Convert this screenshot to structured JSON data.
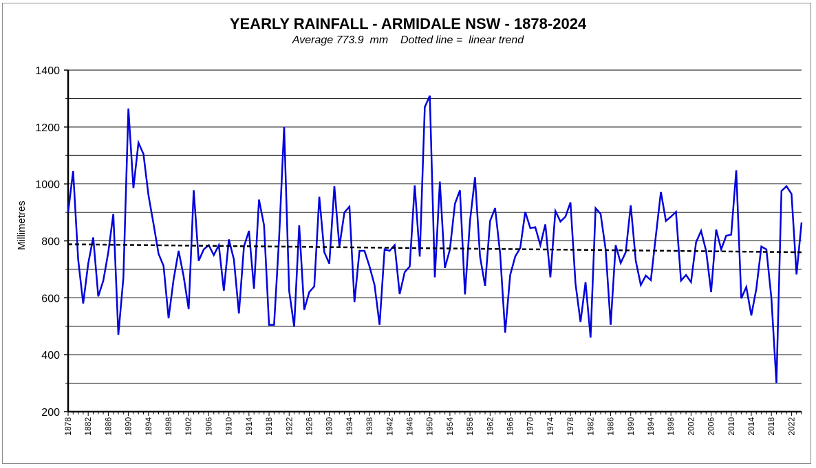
{
  "chart_data": {
    "type": "line",
    "title": "YEARLY RAINFALL - ARMIDALE NSW - 1878-2024",
    "subtitle": "Average 773.9  mm    Dotted line =  linear trend",
    "ylabel": "Millimetres",
    "xlabel": "",
    "ylim": [
      200,
      1400
    ],
    "yticks": [
      200,
      400,
      600,
      800,
      1000,
      1200,
      1400
    ],
    "xlim": [
      1878,
      2024
    ],
    "xticks": [
      1878,
      1882,
      1886,
      1890,
      1894,
      1898,
      1902,
      1906,
      1910,
      1914,
      1918,
      1922,
      1926,
      1930,
      1934,
      1938,
      1942,
      1946,
      1950,
      1954,
      1958,
      1962,
      1966,
      1970,
      1974,
      1978,
      1982,
      1986,
      1990,
      1994,
      1998,
      2002,
      2006,
      2010,
      2014,
      2018,
      2022
    ],
    "grid": "horizontal",
    "series": [
      {
        "color": "#0000dd",
        "x": [
          1878,
          1879,
          1880,
          1881,
          1882,
          1883,
          1884,
          1885,
          1886,
          1887,
          1888,
          1889,
          1890,
          1891,
          1892,
          1893,
          1894,
          1895,
          1896,
          1897,
          1898,
          1899,
          1900,
          1901,
          1902,
          1903,
          1904,
          1905,
          1906,
          1907,
          1908,
          1909,
          1910,
          1911,
          1912,
          1913,
          1914,
          1915,
          1916,
          1917,
          1918,
          1919,
          1920,
          1921,
          1922,
          1923,
          1924,
          1925,
          1926,
          1927,
          1928,
          1929,
          1930,
          1931,
          1932,
          1933,
          1934,
          1935,
          1936,
          1937,
          1938,
          1939,
          1940,
          1941,
          1942,
          1943,
          1944,
          1945,
          1946,
          1947,
          1948,
          1949,
          1950,
          1951,
          1952,
          1953,
          1954,
          1955,
          1956,
          1957,
          1958,
          1959,
          1960,
          1961,
          1962,
          1963,
          1964,
          1965,
          1966,
          1967,
          1968,
          1969,
          1970,
          1971,
          1972,
          1973,
          1974,
          1975,
          1976,
          1977,
          1978,
          1979,
          1980,
          1981,
          1982,
          1983,
          1984,
          1985,
          1986,
          1987,
          1988,
          1989,
          1990,
          1991,
          1992,
          1993,
          1994,
          1995,
          1996,
          1997,
          1998,
          1999,
          2000,
          2001,
          2002,
          2003,
          2004,
          2005,
          2006,
          2007,
          2008,
          2009,
          2010,
          2011,
          2012,
          2013,
          2014,
          2015,
          2016,
          2017,
          2018,
          2019,
          2020,
          2021,
          2022,
          2023,
          2024
        ],
        "y": [
          900,
          1045,
          735,
          580,
          720,
          812,
          605,
          660,
          760,
          895,
          470,
          670,
          1265,
          985,
          1145,
          1105,
          960,
          860,
          755,
          712,
          528,
          665,
          765,
          675,
          560,
          978,
          730,
          770,
          785,
          750,
          785,
          625,
          805,
          735,
          545,
          780,
          835,
          632,
          945,
          855,
          505,
          505,
          810,
          1200,
          625,
          498,
          855,
          558,
          620,
          640,
          955,
          760,
          720,
          992,
          780,
          900,
          920,
          585,
          765,
          765,
          710,
          645,
          505,
          770,
          765,
          785,
          613,
          690,
          710,
          995,
          745,
          1270,
          1310,
          672,
          1008,
          705,
          770,
          930,
          978,
          612,
          870,
          1023,
          745,
          642,
          870,
          915,
          755,
          478,
          680,
          745,
          775,
          902,
          845,
          848,
          785,
          858,
          672,
          905,
          868,
          885,
          935,
          650,
          515,
          655,
          460,
          915,
          895,
          770,
          505,
          785,
          722,
          760,
          925,
          730,
          645,
          678,
          662,
          818,
          972,
          870,
          885,
          902,
          660,
          680,
          655,
          795,
          835,
          765,
          620,
          840,
          770,
          818,
          822,
          1048,
          598,
          638,
          538,
          632,
          780,
          770,
          598,
          300,
          975,
          992,
          965,
          682,
          865
        ]
      },
      {
        "name": "linear trend",
        "type": "trend",
        "color": "#000000",
        "x": [
          1878,
          2024
        ],
        "y": [
          788,
          760
        ]
      }
    ]
  }
}
